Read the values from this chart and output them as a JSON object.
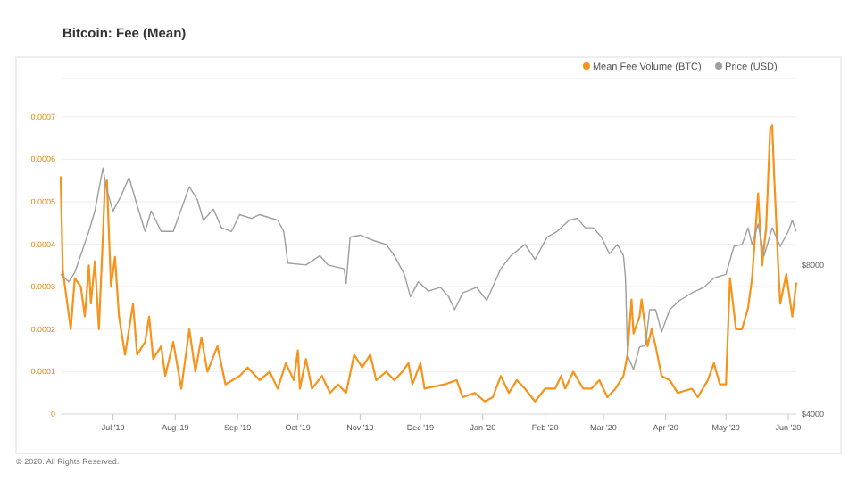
{
  "chart_data": {
    "type": "line",
    "title": "Bitcoin: Fee (Mean)",
    "annotations": [
      "© 2020. All Rights Reserved."
    ],
    "xlim": [
      "2019-06-05",
      "2020-06-05"
    ],
    "xticks": [
      {
        "value": "2019-07-01",
        "label": "Jul '19"
      },
      {
        "value": "2019-08-01",
        "label": "Aug '19"
      },
      {
        "value": "2019-09-01",
        "label": "Sep '19"
      },
      {
        "value": "2019-10-01",
        "label": "Oct '19"
      },
      {
        "value": "2019-11-01",
        "label": "Nov '19"
      },
      {
        "value": "2019-12-01",
        "label": "Dec '19"
      },
      {
        "value": "2020-01-01",
        "label": "Jan '20"
      },
      {
        "value": "2020-02-01",
        "label": "Feb '20"
      },
      {
        "value": "2020-03-01",
        "label": "Mar '20"
      },
      {
        "value": "2020-04-01",
        "label": "Apr '20"
      },
      {
        "value": "2020-05-01",
        "label": "May '20"
      },
      {
        "value": "2020-06-01",
        "label": "Jun '20"
      }
    ],
    "ylim": [
      0,
      0.00079
    ],
    "yticks": [
      0,
      0.0001,
      0.0002,
      0.0003,
      0.0004,
      0.0005,
      0.0006,
      0.0007
    ],
    "y2lim": [
      4000,
      13000
    ],
    "y2ticks": [
      {
        "value": 4000,
        "label": "$4000"
      },
      {
        "value": 8000,
        "label": "$8000"
      }
    ],
    "grid": "y",
    "legend": "top right",
    "line_style": "solid",
    "marker": "none",
    "series": [
      {
        "name": "Mean Fee Volume (BTC)",
        "color": "#f7931a",
        "x": [
          "2019-06-05",
          "2019-06-06",
          "2019-06-10",
          "2019-06-12",
          "2019-06-15",
          "2019-06-17",
          "2019-06-19",
          "2019-06-20",
          "2019-06-22",
          "2019-06-24",
          "2019-06-26",
          "2019-06-27",
          "2019-06-28",
          "2019-06-30",
          "2019-07-02",
          "2019-07-04",
          "2019-07-07",
          "2019-07-11",
          "2019-07-13",
          "2019-07-17",
          "2019-07-19",
          "2019-07-21",
          "2019-07-25",
          "2019-07-27",
          "2019-07-31",
          "2019-08-04",
          "2019-08-08",
          "2019-08-11",
          "2019-08-14",
          "2019-08-17",
          "2019-08-22",
          "2019-08-26",
          "2019-09-02",
          "2019-09-06",
          "2019-09-12",
          "2019-09-17",
          "2019-09-21",
          "2019-09-25",
          "2019-09-29",
          "2019-10-01",
          "2019-10-02",
          "2019-10-05",
          "2019-10-08",
          "2019-10-13",
          "2019-10-17",
          "2019-10-21",
          "2019-10-25",
          "2019-10-29",
          "2019-11-02",
          "2019-11-06",
          "2019-11-09",
          "2019-11-14",
          "2019-11-18",
          "2019-11-22",
          "2019-11-25",
          "2019-11-27",
          "2019-12-01",
          "2019-12-03",
          "2019-12-13",
          "2019-12-19",
          "2019-12-22",
          "2019-12-28",
          "2020-01-02",
          "2020-01-06",
          "2020-01-10",
          "2020-01-14",
          "2020-01-18",
          "2020-01-22",
          "2020-01-27",
          "2020-02-01",
          "2020-02-06",
          "2020-02-09",
          "2020-02-11",
          "2020-02-15",
          "2020-02-20",
          "2020-02-24",
          "2020-02-28",
          "2020-03-03",
          "2020-03-07",
          "2020-03-11",
          "2020-03-13",
          "2020-03-15",
          "2020-03-16",
          "2020-03-19",
          "2020-03-20",
          "2020-03-23",
          "2020-03-25",
          "2020-03-27",
          "2020-03-30",
          "2020-04-03",
          "2020-04-07",
          "2020-04-14",
          "2020-04-17",
          "2020-04-22",
          "2020-04-25",
          "2020-04-28",
          "2020-05-01",
          "2020-05-03",
          "2020-05-06",
          "2020-05-09",
          "2020-05-12",
          "2020-05-14",
          "2020-05-17",
          "2020-05-19",
          "2020-05-21",
          "2020-05-23",
          "2020-05-24",
          "2020-05-25",
          "2020-05-27",
          "2020-05-28",
          "2020-05-31",
          "2020-06-03",
          "2020-06-05"
        ],
        "values": [
          0.00056,
          0.00034,
          0.0002,
          0.00032,
          0.0003,
          0.00023,
          0.00035,
          0.00026,
          0.00036,
          0.0002,
          0.00042,
          0.00054,
          0.00055,
          0.0003,
          0.00037,
          0.00023,
          0.00014,
          0.00026,
          0.00014,
          0.00017,
          0.00023,
          0.00013,
          0.00016,
          9e-05,
          0.00017,
          6e-05,
          0.0002,
          0.0001,
          0.00018,
          0.0001,
          0.00016,
          7e-05,
          9e-05,
          0.00011,
          8e-05,
          0.0001,
          6e-05,
          0.00012,
          8e-05,
          0.00015,
          6e-05,
          0.00013,
          6e-05,
          9e-05,
          5e-05,
          7e-05,
          5e-05,
          0.00014,
          0.00011,
          0.00014,
          8e-05,
          0.0001,
          8e-05,
          0.0001,
          0.00012,
          7e-05,
          0.00012,
          6e-05,
          7e-05,
          8e-05,
          4e-05,
          5e-05,
          3e-05,
          4e-05,
          9e-05,
          5e-05,
          8e-05,
          6e-05,
          3e-05,
          6e-05,
          6e-05,
          9e-05,
          6e-05,
          0.0001,
          6e-05,
          6e-05,
          8e-05,
          4e-05,
          6e-05,
          9e-05,
          0.00014,
          0.00027,
          0.00019,
          0.00023,
          0.00027,
          0.00016,
          0.0002,
          0.00016,
          9e-05,
          8e-05,
          5e-05,
          6e-05,
          4e-05,
          8e-05,
          0.00012,
          7e-05,
          7e-05,
          0.00032,
          0.0002,
          0.0002,
          0.00025,
          0.00032,
          0.00052,
          0.00035,
          0.00044,
          0.00067,
          0.00068,
          0.00056,
          0.00035,
          0.00026,
          0.00033,
          0.00023,
          0.00031
        ]
      },
      {
        "name": "Price (USD)",
        "color": "#9e9e9e",
        "axis": "y2",
        "x": [
          "2019-06-05",
          "2019-06-09",
          "2019-06-12",
          "2019-06-19",
          "2019-06-22",
          "2019-06-26",
          "2019-06-28",
          "2019-07-01",
          "2019-07-05",
          "2019-07-09",
          "2019-07-13",
          "2019-07-17",
          "2019-07-20",
          "2019-07-25",
          "2019-07-31",
          "2019-08-04",
          "2019-08-08",
          "2019-08-12",
          "2019-08-15",
          "2019-08-20",
          "2019-08-24",
          "2019-08-29",
          "2019-09-02",
          "2019-09-08",
          "2019-09-12",
          "2019-09-21",
          "2019-09-24",
          "2019-09-26",
          "2019-10-05",
          "2019-10-12",
          "2019-10-16",
          "2019-10-24",
          "2019-10-25",
          "2019-10-27",
          "2019-11-01",
          "2019-11-08",
          "2019-11-14",
          "2019-11-18",
          "2019-11-23",
          "2019-11-26",
          "2019-11-30",
          "2019-12-05",
          "2019-12-11",
          "2019-12-15",
          "2019-12-18",
          "2019-12-22",
          "2019-12-29",
          "2020-01-03",
          "2020-01-10",
          "2020-01-15",
          "2020-01-22",
          "2020-01-27",
          "2020-02-02",
          "2020-02-07",
          "2020-02-13",
          "2020-02-17",
          "2020-02-21",
          "2020-02-25",
          "2020-02-29",
          "2020-03-04",
          "2020-03-08",
          "2020-03-11",
          "2020-03-12",
          "2020-03-13",
          "2020-03-14",
          "2020-03-16",
          "2020-03-19",
          "2020-03-22",
          "2020-03-24",
          "2020-03-27",
          "2020-03-30",
          "2020-04-03",
          "2020-04-08",
          "2020-04-14",
          "2020-04-20",
          "2020-04-25",
          "2020-05-01",
          "2020-05-05",
          "2020-05-09",
          "2020-05-12",
          "2020-05-14",
          "2020-05-17",
          "2020-05-20",
          "2020-05-24",
          "2020-05-28",
          "2020-06-01",
          "2020-06-03",
          "2020-06-05"
        ],
        "values": [
          7750,
          7550,
          7800,
          8900,
          9450,
          10600,
          10000,
          9450,
          9850,
          10350,
          9600,
          8900,
          9450,
          8900,
          8900,
          9500,
          10100,
          9750,
          9200,
          9500,
          9000,
          8900,
          9350,
          9250,
          9350,
          9200,
          8900,
          8050,
          8000,
          8250,
          8000,
          7900,
          7500,
          8750,
          8800,
          8650,
          8550,
          8250,
          7750,
          7150,
          7550,
          7300,
          7400,
          7150,
          6800,
          7250,
          7400,
          7050,
          7900,
          8250,
          8550,
          8150,
          8750,
          8900,
          9200,
          9250,
          9000,
          9000,
          8750,
          8300,
          8550,
          8250,
          7650,
          5600,
          5450,
          5200,
          5800,
          5850,
          6800,
          6800,
          6200,
          6800,
          7050,
          7250,
          7400,
          7650,
          7750,
          8500,
          8550,
          9000,
          8550,
          9100,
          8250,
          9000,
          8500,
          8900,
          9200,
          8900
        ]
      }
    ]
  }
}
